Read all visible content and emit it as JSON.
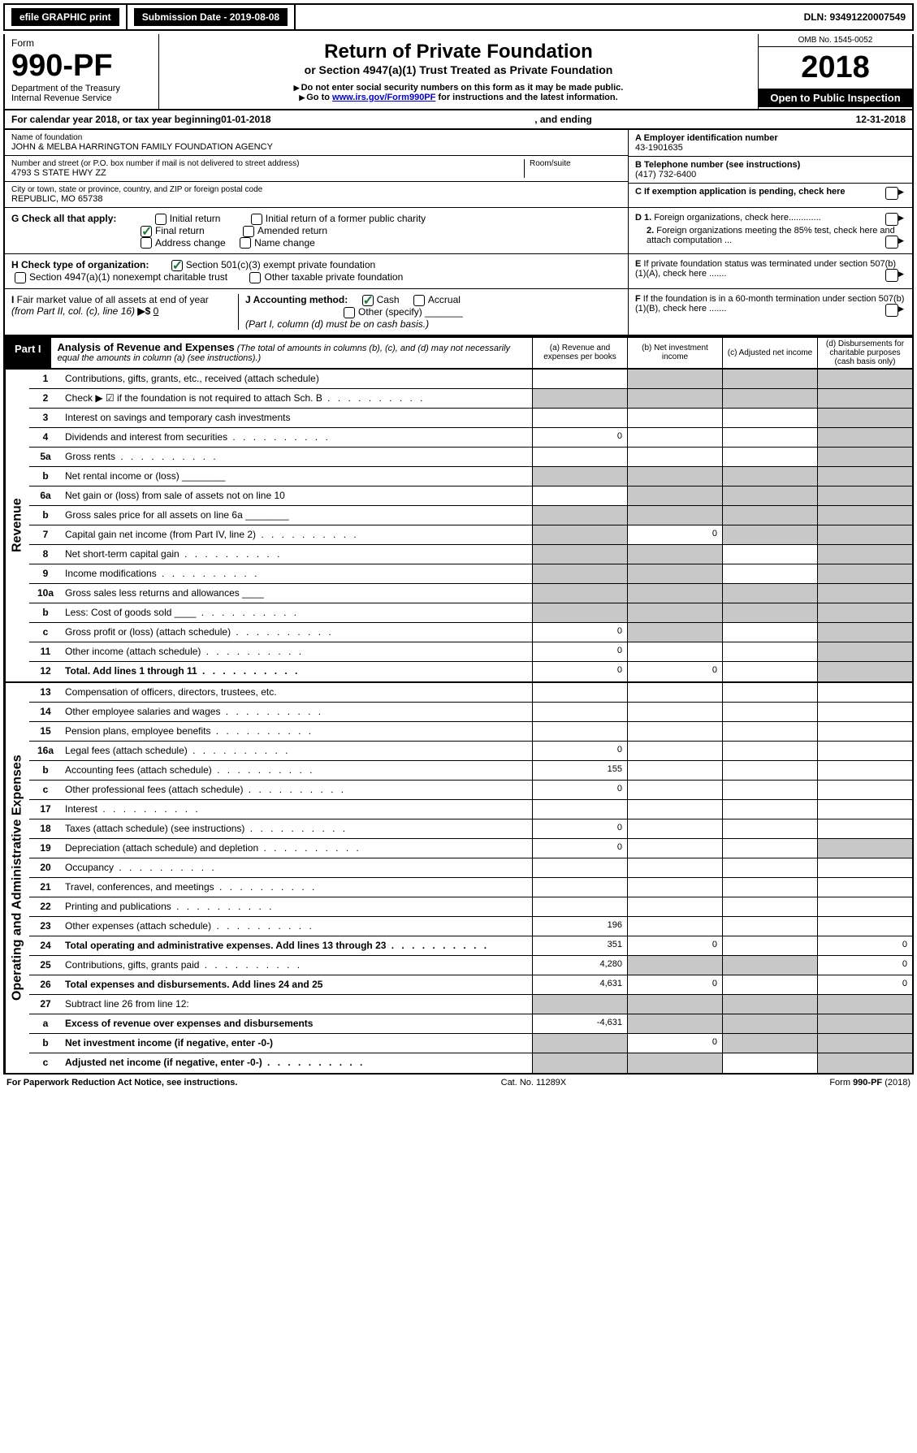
{
  "topbar": {
    "efile": "efile GRAPHIC print",
    "sub_label": "Submission Date - 2019-08-08",
    "dln": "DLN: 93491220007549"
  },
  "header": {
    "form_word": "Form",
    "form_num": "990-PF",
    "dept": "Department of the Treasury",
    "irs": "Internal Revenue Service",
    "title": "Return of Private Foundation",
    "subtitle": "or Section 4947(a)(1) Trust Treated as Private Foundation",
    "warn1": "Do not enter social security numbers on this form as it may be made public.",
    "warn2_pre": "Go to ",
    "warn2_link": "www.irs.gov/Form990PF",
    "warn2_post": " for instructions and the latest information.",
    "omb": "OMB No. 1545-0052",
    "year": "2018",
    "inspect": "Open to Public Inspection"
  },
  "calyear": {
    "pre": "For calendar year 2018, or tax year beginning ",
    "begin": "01-01-2018",
    "mid": " , and ending ",
    "end": "12-31-2018"
  },
  "id": {
    "name_label": "Name of foundation",
    "name": "JOHN & MELBA HARRINGTON FAMILY FOUNDATION AGENCY",
    "addr_label": "Number and street (or P.O. box number if mail is not delivered to street address)",
    "addr": "4793 S STATE HWY ZZ",
    "room_label": "Room/suite",
    "city_label": "City or town, state or province, country, and ZIP or foreign postal code",
    "city": "REPUBLIC, MO  65738",
    "a_label": "A Employer identification number",
    "a_val": "43-1901635",
    "b_label": "B Telephone number (see instructions)",
    "b_val": "(417) 732-6400",
    "c_label": "C If exemption application is pending, check here"
  },
  "checks": {
    "g_label": "G Check all that apply:",
    "g_opts": [
      "Initial return",
      "Final return",
      "Address change",
      "Initial return of a former public charity",
      "Amended return",
      "Name change"
    ],
    "h_label": "H Check type of organization:",
    "h_opts": [
      "Section 501(c)(3) exempt private foundation",
      "Section 4947(a)(1) nonexempt charitable trust",
      "Other taxable private foundation"
    ],
    "i_label": "I Fair market value of all assets at end of year (from Part II, col. (c), line 16) ▶$ ",
    "i_val": "0",
    "j_label": "J Accounting method:",
    "j_opts": [
      "Cash",
      "Accrual",
      "Other (specify)"
    ],
    "j_note": "(Part I, column (d) must be on cash basis.)",
    "d1": "D 1. Foreign organizations, check here.............",
    "d2": "   2. Foreign organizations meeting the 85% test, check here and attach computation ...",
    "e": "E  If private foundation status was terminated under section 507(b)(1)(A), check here .......",
    "f": "F  If the foundation is in a 60-month termination under section 507(b)(1)(B), check here ......."
  },
  "part1": {
    "tab": "Part I",
    "title": "Analysis of Revenue and Expenses",
    "title_note": " (The total of amounts in columns (b), (c), and (d) may not necessarily equal the amounts in column (a) (see instructions).)",
    "cols": [
      "(a)   Revenue and expenses per books",
      "(b)   Net investment income",
      "(c)   Adjusted net income",
      "(d)   Disbursements for charitable purposes (cash basis only)"
    ]
  },
  "side": {
    "rev": "Revenue",
    "exp": "Operating and Administrative Expenses"
  },
  "rows": {
    "revenue": [
      {
        "n": "1",
        "l": "Contributions, gifts, grants, etc., received (attach schedule)",
        "a": "",
        "b": "g",
        "c": "g",
        "d": "g"
      },
      {
        "n": "2",
        "l": "Check ▶ ☑ if the foundation is not required to attach Sch. B",
        "a": "g",
        "b": "g",
        "c": "g",
        "d": "g",
        "dots": 1
      },
      {
        "n": "3",
        "l": "Interest on savings and temporary cash investments",
        "a": "",
        "b": "",
        "c": "",
        "d": "g"
      },
      {
        "n": "4",
        "l": "Dividends and interest from securities",
        "a": "0",
        "b": "",
        "c": "",
        "d": "g",
        "dots": 1
      },
      {
        "n": "5a",
        "l": "Gross rents",
        "a": "",
        "b": "",
        "c": "",
        "d": "g",
        "dots": 1
      },
      {
        "n": "b",
        "l": "Net rental income or (loss)  ________",
        "a": "g",
        "b": "g",
        "c": "g",
        "d": "g"
      },
      {
        "n": "6a",
        "l": "Net gain or (loss) from sale of assets not on line 10",
        "a": "",
        "b": "g",
        "c": "g",
        "d": "g"
      },
      {
        "n": "b",
        "l": "Gross sales price for all assets on line 6a  ________",
        "a": "g",
        "b": "g",
        "c": "g",
        "d": "g"
      },
      {
        "n": "7",
        "l": "Capital gain net income (from Part IV, line 2)",
        "a": "g",
        "b": "0",
        "c": "g",
        "d": "g",
        "dots": 1
      },
      {
        "n": "8",
        "l": "Net short-term capital gain",
        "a": "g",
        "b": "g",
        "c": "",
        "d": "g",
        "dots": 1
      },
      {
        "n": "9",
        "l": "Income modifications",
        "a": "g",
        "b": "g",
        "c": "",
        "d": "g",
        "dots": 1
      },
      {
        "n": "10a",
        "l": "Gross sales less returns and allowances  ____",
        "a": "g",
        "b": "g",
        "c": "g",
        "d": "g"
      },
      {
        "n": "b",
        "l": "Less: Cost of goods sold     ____",
        "a": "g",
        "b": "g",
        "c": "g",
        "d": "g",
        "dots": 1
      },
      {
        "n": "c",
        "l": "Gross profit or (loss) (attach schedule)",
        "a": "0",
        "b": "g",
        "c": "",
        "d": "g",
        "dots": 1
      },
      {
        "n": "11",
        "l": "Other income (attach schedule)",
        "a": "0",
        "b": "",
        "c": "",
        "d": "g",
        "dots": 1
      },
      {
        "n": "12",
        "l": "Total. Add lines 1 through 11",
        "a": "0",
        "b": "0",
        "c": "",
        "d": "g",
        "bold": 1,
        "dots": 1
      }
    ],
    "expenses": [
      {
        "n": "13",
        "l": "Compensation of officers, directors, trustees, etc.",
        "a": "",
        "b": "",
        "c": "",
        "d": ""
      },
      {
        "n": "14",
        "l": "Other employee salaries and wages",
        "a": "",
        "b": "",
        "c": "",
        "d": "",
        "dots": 1
      },
      {
        "n": "15",
        "l": "Pension plans, employee benefits",
        "a": "",
        "b": "",
        "c": "",
        "d": "",
        "dots": 1
      },
      {
        "n": "16a",
        "l": "Legal fees (attach schedule)",
        "a": "0",
        "b": "",
        "c": "",
        "d": "",
        "dots": 1
      },
      {
        "n": "b",
        "l": "Accounting fees (attach schedule)",
        "a": "155",
        "b": "",
        "c": "",
        "d": "",
        "dots": 1
      },
      {
        "n": "c",
        "l": "Other professional fees (attach schedule)",
        "a": "0",
        "b": "",
        "c": "",
        "d": "",
        "dots": 1
      },
      {
        "n": "17",
        "l": "Interest",
        "a": "",
        "b": "",
        "c": "",
        "d": "",
        "dots": 1
      },
      {
        "n": "18",
        "l": "Taxes (attach schedule) (see instructions)",
        "a": "0",
        "b": "",
        "c": "",
        "d": "",
        "dots": 1
      },
      {
        "n": "19",
        "l": "Depreciation (attach schedule) and depletion",
        "a": "0",
        "b": "",
        "c": "",
        "d": "g",
        "dots": 1
      },
      {
        "n": "20",
        "l": "Occupancy",
        "a": "",
        "b": "",
        "c": "",
        "d": "",
        "dots": 1
      },
      {
        "n": "21",
        "l": "Travel, conferences, and meetings",
        "a": "",
        "b": "",
        "c": "",
        "d": "",
        "dots": 1
      },
      {
        "n": "22",
        "l": "Printing and publications",
        "a": "",
        "b": "",
        "c": "",
        "d": "",
        "dots": 1
      },
      {
        "n": "23",
        "l": "Other expenses (attach schedule)",
        "a": "196",
        "b": "",
        "c": "",
        "d": "",
        "dots": 1
      },
      {
        "n": "24",
        "l": "Total operating and administrative expenses. Add lines 13 through 23",
        "a": "351",
        "b": "0",
        "c": "",
        "d": "0",
        "bold": 1,
        "dots": 1
      },
      {
        "n": "25",
        "l": "Contributions, gifts, grants paid",
        "a": "4,280",
        "b": "g",
        "c": "g",
        "d": "0",
        "dots": 1
      },
      {
        "n": "26",
        "l": "Total expenses and disbursements. Add lines 24 and 25",
        "a": "4,631",
        "b": "0",
        "c": "",
        "d": "0",
        "bold": 1
      },
      {
        "n": "27",
        "l": "Subtract line 26 from line 12:",
        "a": "g",
        "b": "g",
        "c": "g",
        "d": "g"
      },
      {
        "n": "a",
        "l": "Excess of revenue over expenses and disbursements",
        "a": "-4,631",
        "b": "g",
        "c": "g",
        "d": "g",
        "bold": 1
      },
      {
        "n": "b",
        "l": "Net investment income (if negative, enter -0-)",
        "a": "g",
        "b": "0",
        "c": "g",
        "d": "g",
        "bold": 1
      },
      {
        "n": "c",
        "l": "Adjusted net income (if negative, enter -0-)",
        "a": "g",
        "b": "g",
        "c": "",
        "d": "g",
        "bold": 1,
        "dots": 1
      }
    ]
  },
  "footer": {
    "left": "For Paperwork Reduction Act Notice, see instructions.",
    "mid": "Cat. No. 11289X",
    "right": "Form 990-PF (2018)"
  },
  "colors": {
    "grey": "#c8c8c8",
    "link": "#0000cc",
    "check": "#1a7a3a"
  }
}
